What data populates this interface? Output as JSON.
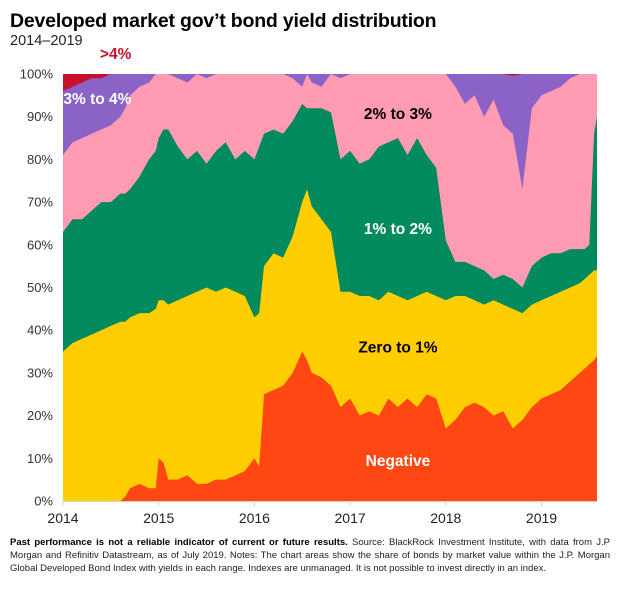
{
  "header": {
    "title": "Developed market gov’t bond yield distribution",
    "subtitle": "2014–2019"
  },
  "footnote": {
    "bold": "Past performance is not a reliable indicator of current or future results.",
    "text": " Source: BlackRock Investment Institute, with data from J.P Morgan and Refinitiv Datastream, as of July 2019. Notes: The chart areas show the share of bonds by market value within the J.P. Morgan Global Developed Bond Index with yields in each range. Indexes are unmanaged. It is not possible to invest directly in an index."
  },
  "chart_data": {
    "type": "area",
    "stacked": true,
    "title": "Developed market gov’t bond yield distribution",
    "subtitle": "2014–2019",
    "xlabel": "",
    "ylabel": "",
    "xlim": [
      2014.0,
      2019.58
    ],
    "ylim": [
      0,
      100
    ],
    "grid": false,
    "x_ticks": [
      "2014",
      "2015",
      "2016",
      "2017",
      "2018",
      "2019"
    ],
    "x_tick_values": [
      2014,
      2015,
      2016,
      2017,
      2018,
      2019
    ],
    "y_ticks": [
      "0%",
      "10%",
      "20%",
      "30%",
      "40%",
      "50%",
      "60%",
      "70%",
      "80%",
      "90%",
      "100%"
    ],
    "y_tick_values": [
      0,
      10,
      20,
      30,
      40,
      50,
      60,
      70,
      80,
      90,
      100
    ],
    "value_note": "Cumulative stacked boundary (top edge) of each band, in percent of market value",
    "x": [
      2014.0,
      2014.1,
      2014.2,
      2014.3,
      2014.4,
      2014.5,
      2014.6,
      2014.65,
      2014.7,
      2014.8,
      2014.9,
      2014.97,
      2015.0,
      2015.05,
      2015.1,
      2015.2,
      2015.3,
      2015.4,
      2015.5,
      2015.6,
      2015.7,
      2015.8,
      2015.9,
      2016.0,
      2016.05,
      2016.1,
      2016.2,
      2016.3,
      2016.4,
      2016.5,
      2016.55,
      2016.6,
      2016.7,
      2016.8,
      2016.9,
      2017.0,
      2017.1,
      2017.2,
      2017.3,
      2017.4,
      2017.5,
      2017.6,
      2017.7,
      2017.8,
      2017.9,
      2018.0,
      2018.1,
      2018.2,
      2018.3,
      2018.4,
      2018.5,
      2018.6,
      2018.7,
      2018.8,
      2018.9,
      2019.0,
      2019.1,
      2019.2,
      2019.3,
      2019.4,
      2019.45,
      2019.5,
      2019.55,
      2019.58
    ],
    "series": [
      {
        "name": "Negative",
        "color": "#FF4713",
        "label_color": "#ffffff",
        "values": [
          0,
          0,
          0,
          0,
          0,
          0,
          0,
          1,
          3,
          4,
          3,
          3,
          10,
          9,
          5,
          5,
          6,
          4,
          4,
          5,
          5,
          6,
          7,
          10,
          8,
          25,
          26,
          27,
          30,
          35,
          33,
          30,
          29,
          27,
          22,
          24,
          20,
          21,
          20,
          24,
          22,
          24,
          22,
          25,
          24,
          17,
          19,
          22,
          23,
          22,
          20,
          21,
          17,
          19,
          22,
          24,
          25,
          26,
          28,
          30,
          31,
          32,
          33,
          34
        ]
      },
      {
        "name": "Zero to 1%",
        "color": "#FFCE00",
        "label_color": "#000000",
        "values": [
          35,
          37,
          38,
          39,
          40,
          41,
          42,
          42,
          43,
          44,
          44,
          45,
          47,
          47,
          46,
          47,
          48,
          49,
          50,
          49,
          50,
          49,
          48,
          43,
          44,
          55,
          58,
          57,
          62,
          70,
          73,
          69,
          66,
          63,
          49,
          49,
          48,
          48,
          47,
          49,
          48,
          47,
          48,
          49,
          48,
          47,
          48,
          48,
          47,
          46,
          47,
          46,
          45,
          44,
          46,
          47,
          48,
          49,
          50,
          51,
          52,
          53,
          54,
          54
        ]
      },
      {
        "name": "1% to 2%",
        "color": "#008A5E",
        "label_color": "#ffffff",
        "values": [
          63,
          66,
          66,
          68,
          70,
          70,
          72,
          72,
          73,
          76,
          80,
          82,
          85,
          87,
          87,
          83,
          80,
          82,
          79,
          82,
          84,
          80,
          82,
          80,
          83,
          86,
          87,
          86,
          89,
          93,
          92,
          92,
          92,
          91,
          80,
          82,
          79,
          80,
          83,
          84,
          85,
          81,
          85,
          81,
          78,
          61,
          56,
          56,
          55,
          54,
          52,
          53,
          52,
          50,
          55,
          57,
          58,
          58,
          59,
          59,
          59,
          60,
          86,
          90
        ]
      },
      {
        "name": "2% to 3%",
        "color": "#FF9BB3",
        "label_color": "#000000",
        "values": [
          81,
          84,
          85,
          86,
          87,
          88,
          90,
          92,
          95,
          97,
          98,
          100,
          100,
          100,
          100,
          99,
          98,
          100,
          99,
          100,
          100,
          100,
          100,
          100,
          100,
          100,
          100,
          100,
          99,
          97,
          100,
          98,
          97,
          100,
          99,
          100,
          100,
          100,
          100,
          100,
          100,
          100,
          100,
          100,
          100,
          100,
          97,
          93,
          95,
          90,
          94,
          88,
          86,
          73,
          92,
          95,
          96,
          97,
          99,
          100,
          100,
          100,
          100,
          100
        ]
      },
      {
        "name": "3% to 4%",
        "color": "#8B63C6",
        "label_color": "#ffffff",
        "values": [
          96,
          97,
          98,
          99,
          99,
          100,
          100,
          100,
          100,
          100,
          100,
          100,
          100,
          100,
          100,
          100,
          100,
          100,
          100,
          100,
          100,
          100,
          100,
          100,
          100,
          100,
          100,
          100,
          100,
          100,
          100,
          100,
          100,
          100,
          100,
          100,
          100,
          100,
          100,
          100,
          100,
          100,
          100,
          100,
          100,
          100,
          100,
          100,
          100,
          100,
          100,
          100,
          99.6,
          100,
          100,
          100,
          100,
          100,
          100,
          100,
          100,
          100,
          100,
          100
        ]
      },
      {
        "name": ">4%",
        "color": "#C8102E",
        "label_color": "#C8102E",
        "values": [
          100,
          100,
          100,
          100,
          100,
          100,
          100,
          100,
          100,
          100,
          100,
          100,
          100,
          100,
          100,
          100,
          100,
          100,
          100,
          100,
          100,
          100,
          100,
          100,
          100,
          100,
          100,
          100,
          100,
          100,
          100,
          100,
          100,
          100,
          100,
          100,
          100,
          100,
          100,
          100,
          100,
          100,
          100,
          100,
          100,
          100,
          100,
          100,
          100,
          100,
          100,
          100,
          100,
          100,
          100,
          100,
          100,
          100,
          100,
          100,
          100,
          100,
          100,
          100
        ]
      }
    ],
    "annotations": [
      {
        "text": ">4%",
        "series": ">4%",
        "x": 2014.55,
        "y": 103.5
      },
      {
        "text": "3% to 4%",
        "series": "3% to 4%",
        "x": 2014.36,
        "y": 93
      },
      {
        "text": "2% to 3%",
        "series": "2% to 3%",
        "x": 2017.5,
        "y": 89.5
      },
      {
        "text": "1% to 2%",
        "series": "1% to 2%",
        "x": 2017.5,
        "y": 62.5
      },
      {
        "text": "Zero to 1%",
        "series": "Zero to 1%",
        "x": 2017.5,
        "y": 34.8
      },
      {
        "text": "Negative",
        "series": "Negative",
        "x": 2017.5,
        "y": 8.2
      }
    ]
  }
}
